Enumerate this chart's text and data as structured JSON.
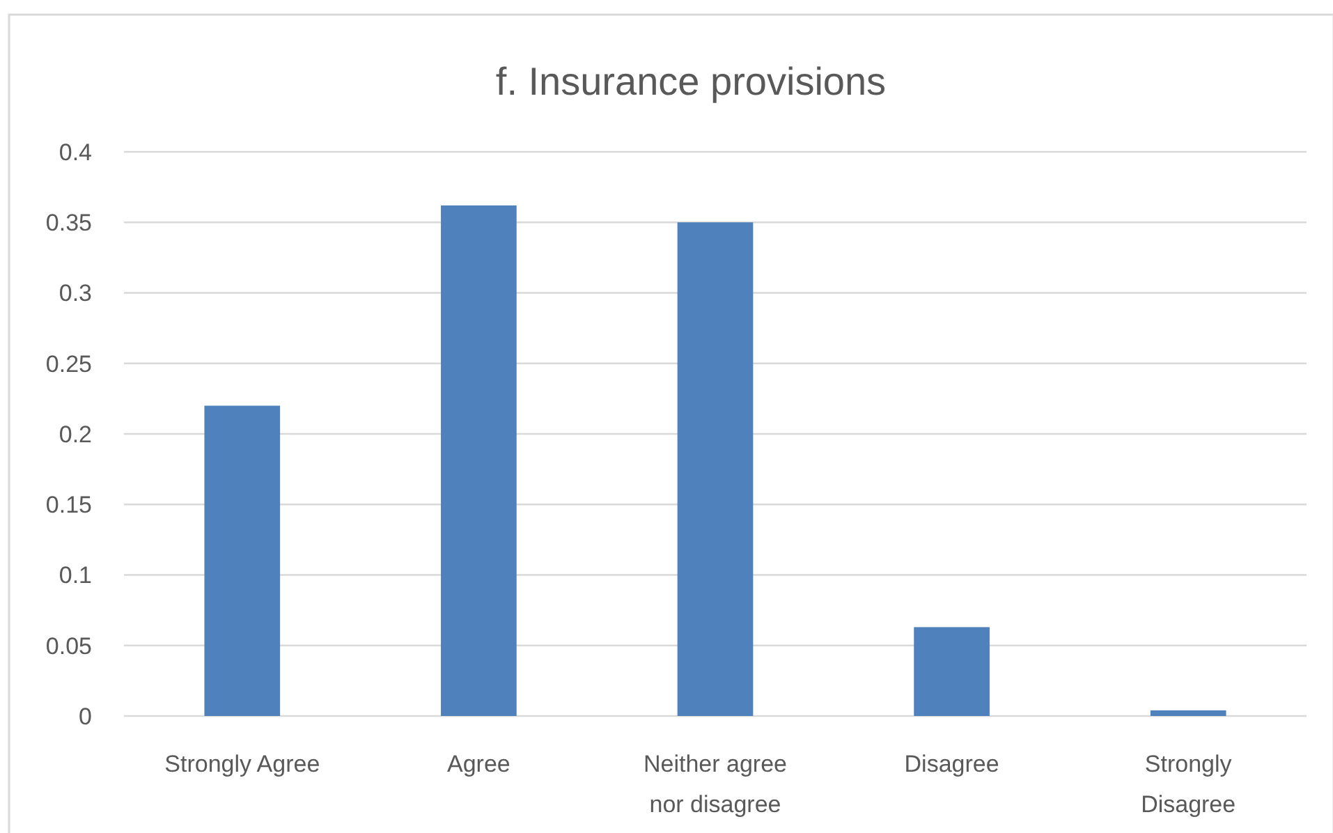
{
  "chart_data": {
    "type": "bar",
    "title": "f. Insurance provisions",
    "categories": [
      "Strongly Agree",
      "Agree",
      "Neither agree nor disagree",
      "Disagree",
      "Strongly Disagree"
    ],
    "values": [
      0.22,
      0.362,
      0.35,
      0.063,
      0.004
    ],
    "color": "#4f81bd",
    "ylim": [
      0,
      0.4
    ],
    "yticks": [
      0,
      0.05,
      0.1,
      0.15,
      0.2,
      0.25,
      0.3,
      0.35,
      0.4
    ],
    "grid": "y"
  }
}
